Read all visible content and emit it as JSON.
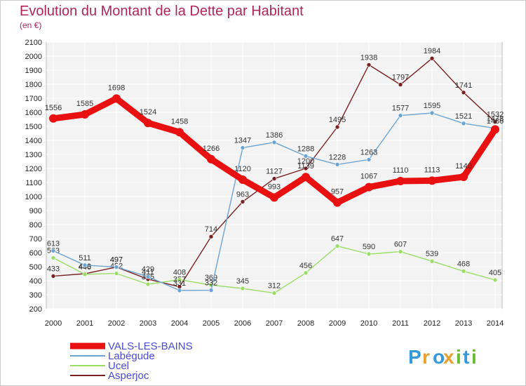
{
  "chart_data": {
    "type": "line",
    "title": "Evolution du Montant de la Dette par Habitant",
    "subtitle": "(en €)",
    "x": [
      "2000",
      "2001",
      "2002",
      "2003",
      "2004",
      "2005",
      "2006",
      "2007",
      "2008",
      "2009",
      "2010",
      "2011",
      "2012",
      "2013",
      "2014"
    ],
    "ylim": [
      200,
      2100
    ],
    "yticks": [
      200,
      300,
      400,
      500,
      600,
      700,
      800,
      900,
      1000,
      1100,
      1200,
      1300,
      1400,
      1500,
      1600,
      1700,
      1800,
      1900,
      2000,
      2100
    ],
    "grid": true,
    "legend_position": "bottom-left",
    "series": [
      {
        "name": "VALS-LES-BAINS",
        "color": "#e81010",
        "values": [
          1556,
          1585,
          1698,
          1524,
          1458,
          1266,
          1120,
          993,
          1139,
          957,
          1067,
          1110,
          1113,
          1140,
          1478
        ]
      },
      {
        "name": "Labégude",
        "color": "#6aa4d4",
        "values": [
          613,
          511,
          497,
          429,
          331,
          332,
          1347,
          1386,
          1288,
          1228,
          1263,
          1577,
          1595,
          1521,
          1486
        ]
      },
      {
        "name": "Ucel",
        "color": "#99dd66",
        "values": [
          563,
          446,
          452,
          375,
          408,
          369,
          345,
          312,
          456,
          647,
          590,
          607,
          539,
          468,
          405
        ]
      },
      {
        "name": "Asperjoc",
        "color": "#7a2222",
        "values": [
          433,
          450,
          497,
          411,
          357,
          714,
          963,
          1127,
          1200,
          1495,
          1938,
          1797,
          1984,
          1741,
          1532
        ]
      }
    ]
  },
  "brand": {
    "text": "Proxiti",
    "letters": [
      "P",
      "r",
      "o",
      "x",
      "i",
      "t",
      "i"
    ]
  }
}
